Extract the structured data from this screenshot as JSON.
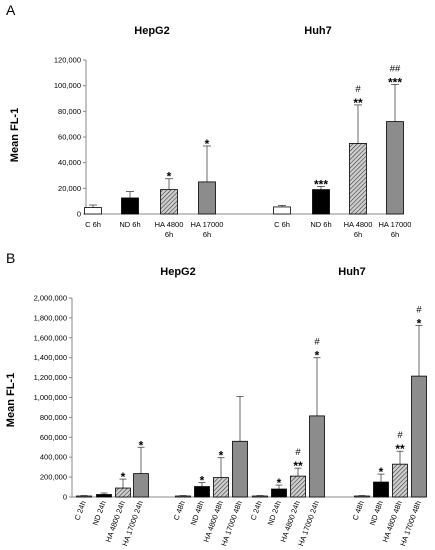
{
  "chart_data": [
    {
      "type": "bar",
      "panel_label": "A",
      "ylabel": "Mean FL-1",
      "ylim": [
        0,
        120000
      ],
      "yticks": [
        "0",
        "20,000",
        "40,000",
        "60,000",
        "80,000",
        "100,000",
        "120,000"
      ],
      "groups": [
        {
          "title": "HepG2",
          "bars": [
            {
              "label": "C 6h",
              "value": 5000,
              "error": 2000,
              "fill": "white",
              "sig": "",
              "hash": ""
            },
            {
              "label": "ND 6h",
              "value": 12500,
              "error": 5000,
              "fill": "black",
              "sig": "",
              "hash": ""
            },
            {
              "label": "HA 4800 6h",
              "value": 19000,
              "error": 8500,
              "fill": "hatch",
              "sig": "*",
              "hash": ""
            },
            {
              "label": "HA 17000 6h",
              "value": 25000,
              "error": 28000,
              "fill": "grey",
              "sig": "*",
              "hash": ""
            }
          ]
        },
        {
          "title": "Huh7",
          "bars": [
            {
              "label": "C 6h",
              "value": 5500,
              "error": 1200,
              "fill": "white",
              "sig": "",
              "hash": ""
            },
            {
              "label": "ND 6h",
              "value": 19000,
              "error": 2500,
              "fill": "black",
              "sig": "***",
              "hash": ""
            },
            {
              "label": "HA 4800 6h",
              "value": 55000,
              "error": 30000,
              "fill": "hatch",
              "sig": "**",
              "hash": "#"
            },
            {
              "label": "HA 17000 6h",
              "value": 72000,
              "error": 29000,
              "fill": "grey",
              "sig": "***",
              "hash": "##"
            }
          ]
        }
      ]
    },
    {
      "type": "bar",
      "panel_label": "B",
      "ylabel": "Mean FL-1",
      "ylim": [
        0,
        2000000
      ],
      "yticks": [
        "0",
        "200,000",
        "400,000",
        "600,000",
        "800,000",
        "1,000,000",
        "1,200,000",
        "1,400,000",
        "1,600,000",
        "1,800,000",
        "2,000,000"
      ],
      "groups": [
        {
          "title": "HepG2",
          "bars": [
            {
              "label": "C 24h",
              "value": 10000,
              "error": 4000,
              "fill": "white",
              "sig": "",
              "hash": ""
            },
            {
              "label": "ND 24h",
              "value": 25000,
              "error": 15000,
              "fill": "black",
              "sig": "",
              "hash": ""
            },
            {
              "label": "HA 4800 24h",
              "value": 90000,
              "error": 90000,
              "fill": "hatch",
              "sig": "*",
              "hash": ""
            },
            {
              "label": "HA 17000 24h",
              "value": 235000,
              "error": 265000,
              "fill": "grey",
              "sig": "*",
              "hash": ""
            },
            {
              "label": "C 48h",
              "value": 10000,
              "error": 4000,
              "fill": "white",
              "sig": "",
              "hash": ""
            },
            {
              "label": "ND 48h",
              "value": 105000,
              "error": 40000,
              "fill": "black",
              "sig": "*",
              "hash": ""
            },
            {
              "label": "HA 4800 48h",
              "value": 195000,
              "error": 200000,
              "fill": "hatch",
              "sig": "*",
              "hash": ""
            },
            {
              "label": "HA 17000 48h",
              "value": 560000,
              "error": 450000,
              "fill": "grey",
              "sig": "",
              "hash": ""
            }
          ]
        },
        {
          "title": "Huh7",
          "bars": [
            {
              "label": "C 24h",
              "value": 10000,
              "error": 4000,
              "fill": "white",
              "sig": "",
              "hash": ""
            },
            {
              "label": "ND 24h",
              "value": 80000,
              "error": 40000,
              "fill": "black",
              "sig": "*",
              "hash": ""
            },
            {
              "label": "HA 4800 24h",
              "value": 210000,
              "error": 80000,
              "fill": "hatch",
              "sig": "**",
              "hash": "#"
            },
            {
              "label": "HA 17000 24h",
              "value": 815000,
              "error": 585000,
              "fill": "grey",
              "sig": "*",
              "hash": "#"
            },
            {
              "label": "C 48h",
              "value": 10000,
              "error": 4000,
              "fill": "white",
              "sig": "",
              "hash": ""
            },
            {
              "label": "ND 48h",
              "value": 150000,
              "error": 80000,
              "fill": "black",
              "sig": "*",
              "hash": ""
            },
            {
              "label": "HA 4800 48h",
              "value": 330000,
              "error": 130000,
              "fill": "hatch",
              "sig": "**",
              "hash": "#"
            },
            {
              "label": "HA 17000 48h",
              "value": 1215000,
              "error": 510000,
              "fill": "grey",
              "sig": "*",
              "hash": "#"
            }
          ]
        }
      ]
    }
  ]
}
